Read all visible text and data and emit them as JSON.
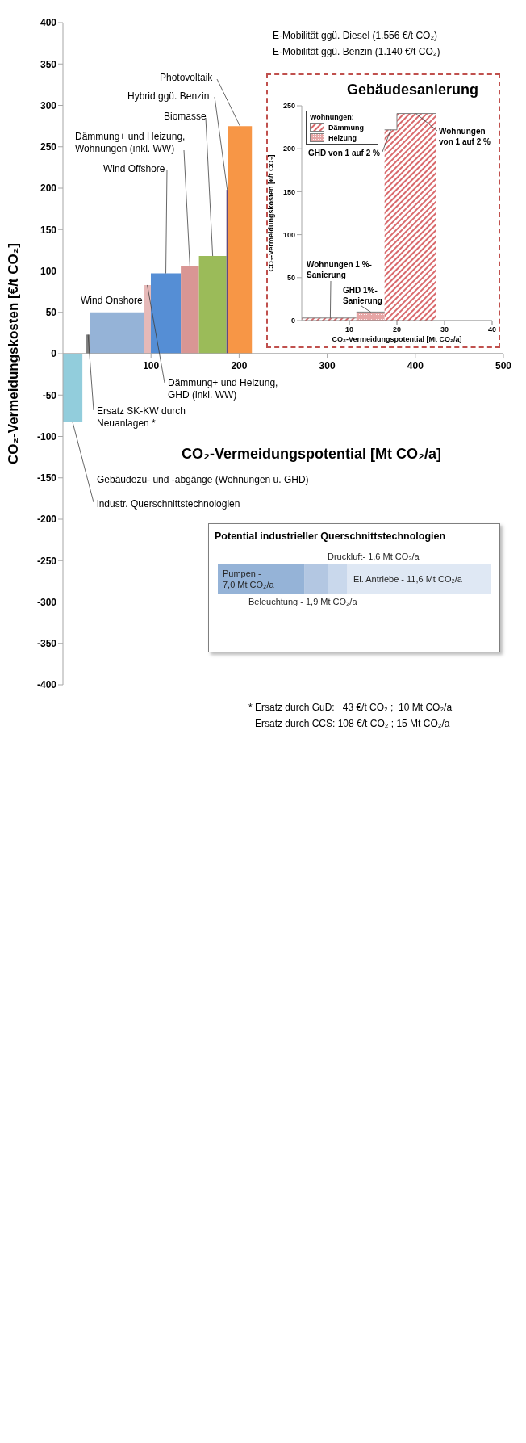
{
  "chart_data": [
    {
      "type": "area",
      "xlabel": "CO₂-Vermeidungspotential [Mt CO₂/a]",
      "ylabel": "CO₂-Vermeidungskosten [€/t CO₂]",
      "xlim": [
        0,
        500
      ],
      "xticks": [
        100,
        200,
        300,
        400,
        500
      ],
      "ylim": [
        -400,
        400
      ],
      "yticks": [
        -400,
        -350,
        -300,
        -250,
        -200,
        -150,
        -100,
        -50,
        0,
        50,
        100,
        150,
        200,
        250,
        300,
        350,
        400
      ],
      "series": [
        {
          "name": "industr. Querschnittstechnologien",
          "color": "#92cddc",
          "x": [
            0,
            22.1
          ],
          "values": [
            -83,
            -83
          ]
        },
        {
          "name": "Ersatz SK-KW durch Neuanlagen *",
          "color": "#7f7f7f",
          "x": [
            26.6,
            30.5
          ],
          "values": [
            23,
            23
          ]
        },
        {
          "name": "Wind Onshore",
          "color": "#95b3d7",
          "x": [
            30.5,
            91.7
          ],
          "values": [
            50,
            50
          ]
        },
        {
          "name": "Dämmung+ und Heizung, GHD (inkl. WW)",
          "color": "#e6b9b8",
          "x": [
            91.7,
            99.8
          ],
          "values": [
            83,
            83
          ]
        },
        {
          "name": "Wind Offshore",
          "color": "#558ed5",
          "x": [
            99.8,
            133.8
          ],
          "values": [
            97,
            97
          ]
        },
        {
          "name": "Dämmung+ und Heizung, Wohnungen (inkl. WW)",
          "color": "#d99694",
          "x": [
            133.8,
            154.4
          ],
          "values": [
            106,
            106
          ]
        },
        {
          "name": "Biomasse",
          "color": "#9bbb59",
          "x": [
            154.4,
            185.6
          ],
          "values": [
            118,
            118
          ]
        },
        {
          "name": "Hybrid ggü. Benzin",
          "color": "#604a7b",
          "x": [
            185.6,
            187.5
          ],
          "values": [
            198,
            198
          ]
        },
        {
          "name": "Photovoltaik",
          "color": "#f79646",
          "x": [
            187.5,
            214.5
          ],
          "values": [
            275,
            275
          ]
        }
      ],
      "annotations": [
        "E-Mobilität ggü. Diesel (1.556 €/t CO₂)",
        "E-Mobilität ggü. Benzin (1.140 €/t CO₂)",
        "Gebäudezu- und -abgänge (Wohnungen u. GHD)",
        "* Ersatz durch GuD:   43 €/t CO₂ ;  10 Mt CO₂/a",
        "Ersatz durch CCS: 108 €/t CO₂ ; 15 Mt CO₂/a"
      ]
    },
    {
      "type": "area",
      "title": "Gebäudesanierung",
      "xlabel": "CO₂-Vermeidungspotential [Mt CO₂/a]",
      "ylabel": "CO₂-Vermeidungskosten [€/t CO₂]",
      "xlim": [
        0,
        40
      ],
      "xticks": [
        10,
        20,
        30,
        40
      ],
      "ylim": [
        0,
        250
      ],
      "yticks": [
        0,
        50,
        100,
        150,
        200,
        250
      ],
      "legend": "top left",
      "legend_title": "Wohnungen:",
      "series": [
        {
          "name": "Dämmung",
          "color": "#d9696c",
          "x": [
            0,
            11.5,
            14,
            17.4,
            20,
            20,
            28.3
          ],
          "values": [
            3,
            3,
            null,
            222,
            222,
            241,
            241
          ]
        },
        {
          "name": "Heizung",
          "color": "#e6a5a5",
          "x": [
            11.5,
            17.4
          ],
          "values": [
            10,
            10
          ]
        }
      ],
      "annotations": [
        {
          "text": "Wohnungen 1 %-Sanierung",
          "x": 6,
          "y": 3
        },
        {
          "text": "GHD 1%-Sanierung",
          "x": 14.5,
          "y": 10
        },
        {
          "text": "GHD von 1 auf 2 %",
          "x": 18.7,
          "y": 222
        },
        {
          "text": "Wohnungen von 1 auf 2 %",
          "x": 24,
          "y": 241
        }
      ]
    },
    {
      "type": "bar",
      "title": "Potential industrieller Querschnittstechnologien",
      "orientation": "horizontal",
      "stacked": true,
      "tick_labels": false,
      "categories": [
        null
      ],
      "series": [
        {
          "name": "Pumpen -",
          "color": "#95b3d7",
          "values": [
            7.0
          ],
          "value_labels": [
            "7,0 Mt CO₂/a"
          ]
        },
        {
          "name": "Beleuchtung -",
          "color": "#b3c7e2",
          "values": [
            1.9
          ],
          "value_labels": [
            "1,9 Mt CO₂/a"
          ]
        },
        {
          "name": "Druckluft-",
          "color": "#c9d8ec",
          "values": [
            1.6
          ],
          "value_labels": [
            "1,6 Mt CO₂/a"
          ]
        },
        {
          "name": "El. Antriebe -",
          "color": "#dfe8f4",
          "values": [
            11.6
          ],
          "value_labels": [
            "11,6 Mt CO₂/a"
          ]
        }
      ]
    }
  ]
}
